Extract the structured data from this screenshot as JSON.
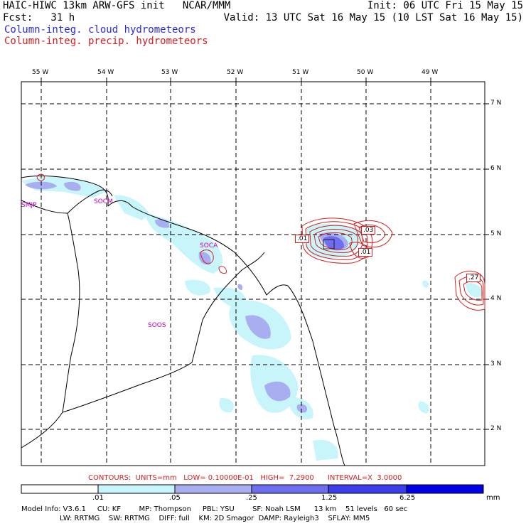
{
  "header": {
    "left1": "HAIC-HIWC 13km ARW-GFS init   NCAR/MMM",
    "left2": "Fcst:   31 h",
    "right1": "Init: 06 UTC Fri 15 May 15",
    "right2": "Valid: 13 UTC Sat 16 May 15 (10 LST Sat 16 May 15)",
    "legend_cloud": "Column-integ. cloud hydrometeors",
    "legend_precip": "Column-integ. precip. hydrometeors"
  },
  "axes": {
    "lon_labels": [
      "55 W",
      "54 W",
      "53 W",
      "52 W",
      "51 W",
      "50 W",
      "49 W"
    ],
    "lat_labels": [
      "7 N",
      "6 N",
      "5 N",
      "4 N",
      "3 N",
      "2 N"
    ]
  },
  "stations": [
    "SMJP",
    "SOCM",
    "SOCA",
    "SOOS"
  ],
  "contour_labels": [
    ".01",
    ".03",
    ".01",
    ".27"
  ],
  "contours_line": "CONTOURS:  UNITS=mm   LOW= 0.10000E-01   HIGH=  7.2900      INTERVAL=X  3.0000",
  "colorbar": {
    "ticks": [
      ".01",
      ".05",
      ".25",
      "1.25",
      "6.25"
    ],
    "unit": "mm",
    "colors": [
      "#ffffff",
      "#c8f5fa",
      "#a9aef0",
      "#6f6ef0",
      "#3c3ce8",
      "#0000e6"
    ]
  },
  "footer": {
    "line1": "Model Info: V3.6.1     CU: KF        MP: Thompson     PBL: YSU        SF: Noah LSM      13 km    51 levels   60 sec",
    "line2": "                 LW: RRTMG    SW: RRTMG    DIFF: full    KM: 2D Smagor  DAMP: Rayleigh3    SFLAY: MM5"
  }
}
